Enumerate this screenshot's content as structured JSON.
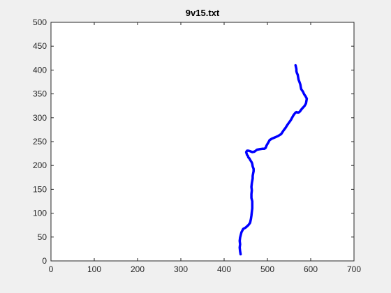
{
  "chart_data": {
    "type": "line",
    "title": "9v15.txt",
    "xlabel": "",
    "ylabel": "",
    "xlim": [
      0,
      700
    ],
    "ylim": [
      0,
      500
    ],
    "x_ticks": [
      0,
      100,
      200,
      300,
      400,
      500,
      600,
      700
    ],
    "y_ticks": [
      0,
      50,
      100,
      150,
      200,
      250,
      300,
      350,
      400,
      450,
      500
    ],
    "grid": false,
    "series": [
      {
        "color": "#0000ff",
        "x": [
          438,
          437,
          436,
          437,
          436,
          437,
          440,
          444,
          450,
          456,
          460,
          462,
          463,
          464,
          465,
          465,
          465,
          463,
          463,
          464,
          463,
          464,
          465,
          466,
          466,
          467,
          468,
          468,
          466,
          465,
          464,
          462,
          460,
          458,
          456,
          455,
          453,
          452,
          451,
          453,
          456,
          460,
          465,
          470,
          476,
          482,
          488,
          493,
          496,
          498,
          502,
          505,
          510,
          518,
          525,
          532,
          537,
          542,
          546,
          550,
          554,
          557,
          560,
          564,
          567,
          570,
          572,
          575,
          578,
          582,
          586,
          589,
          590,
          591,
          588,
          585,
          582,
          578,
          577,
          576,
          574,
          572,
          571,
          570,
          568,
          567,
          567,
          566,
          565
        ],
        "y": [
          14,
          20,
          28,
          35,
          42,
          49,
          60,
          67,
          70,
          75,
          80,
          88,
          95,
          103,
          110,
          118,
          125,
          132,
          140,
          148,
          155,
          163,
          168,
          173,
          178,
          183,
          188,
          193,
          198,
          203,
          206,
          209,
          212,
          215,
          217,
          220,
          222,
          225,
          228,
          231,
          231,
          230,
          228,
          229,
          233,
          234,
          235,
          235,
          237,
          242,
          248,
          253,
          256,
          259,
          262,
          266,
          273,
          279,
          285,
          290,
          295,
          300,
          305,
          310,
          312,
          311,
          311,
          313,
          317,
          321,
          325,
          330,
          335,
          340,
          345,
          349,
          355,
          360,
          365,
          370,
          375,
          380,
          385,
          390,
          394,
          398,
          402,
          406,
          410
        ]
      }
    ]
  }
}
